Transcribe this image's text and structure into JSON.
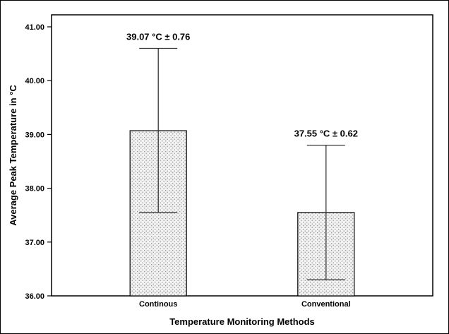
{
  "chart_data": {
    "type": "bar",
    "title": "",
    "xlabel": "Temperature Monitoring Methods",
    "ylabel": "Average Peak Temperature in °C",
    "categories": [
      "Continous",
      "Conventional"
    ],
    "values": [
      39.07,
      37.55
    ],
    "value_labels": [
      "39.07 °C ± 0.76",
      "37.55 °C ± 0.62"
    ],
    "error_upper": [
      40.6,
      38.8
    ],
    "error_lower": [
      37.55,
      36.3
    ],
    "ylim": [
      36,
      41
    ],
    "yticks": [
      "36.00",
      "37.00",
      "38.00",
      "39.00",
      "40.00",
      "41.00"
    ],
    "grid": false,
    "legend": null,
    "bar_fill": "stipple",
    "bar_edge_color": "#000000",
    "error_bar_color": "#333333",
    "background_color": "#ffffff"
  }
}
